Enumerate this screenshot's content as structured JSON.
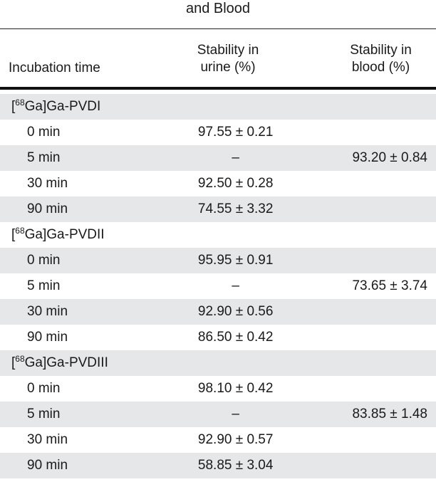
{
  "title": "and Blood",
  "headers": {
    "col1": "Incubation time",
    "col2_line1": "Stability in",
    "col2_line2": "urine (%)",
    "col3_line1": "Stability in",
    "col3_line2": "blood (%)"
  },
  "groups": [
    {
      "sup": "68",
      "name_pre": "[",
      "name_post": "Ga]Ga-PVDI",
      "rows": [
        {
          "time": "0 min",
          "urine": "97.55 ± 0.21",
          "blood": ""
        },
        {
          "time": "5 min",
          "urine": "–",
          "blood": "93.20 ± 0.84"
        },
        {
          "time": "30 min",
          "urine": "92.50 ± 0.28",
          "blood": ""
        },
        {
          "time": "90 min",
          "urine": "74.55 ± 3.32",
          "blood": ""
        }
      ]
    },
    {
      "sup": "68",
      "name_pre": "[",
      "name_post": "Ga]Ga-PVDII",
      "rows": [
        {
          "time": "0 min",
          "urine": "95.95 ± 0.91",
          "blood": ""
        },
        {
          "time": "5 min",
          "urine": "–",
          "blood": "73.65 ± 3.74"
        },
        {
          "time": "30 min",
          "urine": "92.90 ± 0.56",
          "blood": ""
        },
        {
          "time": "90 min",
          "urine": "86.50 ± 0.42",
          "blood": ""
        }
      ]
    },
    {
      "sup": "68",
      "name_pre": "[",
      "name_post": "Ga]Ga-PVDIII",
      "rows": [
        {
          "time": "0 min",
          "urine": "98.10 ± 0.42",
          "blood": ""
        },
        {
          "time": "5 min",
          "urine": "–",
          "blood": "83.85 ± 1.48"
        },
        {
          "time": "30 min",
          "urine": "92.90 ± 0.57",
          "blood": ""
        },
        {
          "time": "90 min",
          "urine": "58.85 ± 3.04",
          "blood": ""
        }
      ]
    }
  ]
}
